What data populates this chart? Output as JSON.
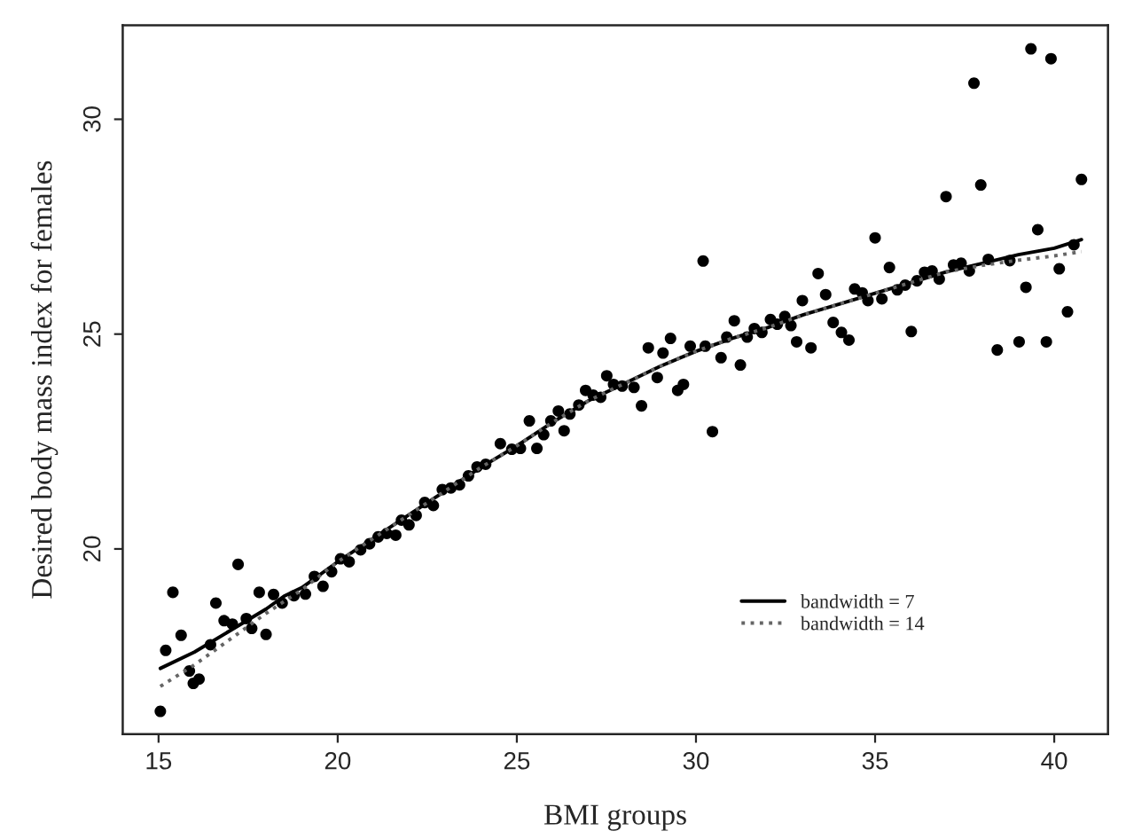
{
  "chart_data": {
    "type": "scatter",
    "xlabel": "BMI groups",
    "ylabel": "Desired body mass index for females",
    "xlim": [
      14.0,
      41.5
    ],
    "ylim": [
      15.69,
      32.19
    ],
    "xticks": [
      15,
      20,
      25,
      30,
      35,
      40
    ],
    "yticks": [
      20,
      25,
      30
    ],
    "grid": false,
    "legend": "bottom right",
    "marker": "circle",
    "series": [
      {
        "color": "#000000",
        "x": [
          15.05,
          15.2,
          15.4,
          15.63,
          15.86,
          15.97,
          16.13,
          16.45,
          16.6,
          16.83,
          17.06,
          17.22,
          17.45,
          17.6,
          17.81,
          18.0,
          18.21,
          18.45,
          18.78,
          19.1,
          19.35,
          19.59,
          19.83,
          20.08,
          20.32,
          20.64,
          20.89,
          21.13,
          21.37,
          21.62,
          21.78,
          21.99,
          22.19,
          22.43,
          22.67,
          22.92,
          23.16,
          23.4,
          23.65,
          23.89,
          24.13,
          24.54,
          24.86,
          25.1,
          25.35,
          25.56,
          25.75,
          25.95,
          26.16,
          26.32,
          26.48,
          26.73,
          26.92,
          27.13,
          27.34,
          27.51,
          27.7,
          27.94,
          28.27,
          28.48,
          28.67,
          28.92,
          29.08,
          29.29,
          29.49,
          29.65,
          29.84,
          30.2,
          30.26,
          30.46,
          30.7,
          30.86,
          31.07,
          31.24,
          31.43,
          31.63,
          31.84,
          32.08,
          32.27,
          32.48,
          32.65,
          32.81,
          32.97,
          33.21,
          33.41,
          33.62,
          33.83,
          34.06,
          34.27,
          34.43,
          34.64,
          34.8,
          35.0,
          35.19,
          35.4,
          35.62,
          35.84,
          36.01,
          36.17,
          36.38,
          36.59,
          36.79,
          36.98,
          37.19,
          37.4,
          37.63,
          37.76,
          37.95,
          38.16,
          38.41,
          38.76,
          39.02,
          39.21,
          39.35,
          39.54,
          39.78,
          39.91,
          40.14,
          40.37,
          40.55,
          40.76
        ],
        "values": [
          16.22,
          17.64,
          18.99,
          17.99,
          17.16,
          16.87,
          16.97,
          17.77,
          18.74,
          18.33,
          18.25,
          19.64,
          18.38,
          18.15,
          18.99,
          18.01,
          18.94,
          18.74,
          18.91,
          18.95,
          19.36,
          19.13,
          19.47,
          19.77,
          19.7,
          19.98,
          20.12,
          20.28,
          20.36,
          20.32,
          20.67,
          20.56,
          20.78,
          21.08,
          21.01,
          21.38,
          21.42,
          21.49,
          21.7,
          21.91,
          21.97,
          22.45,
          22.32,
          22.34,
          22.98,
          22.34,
          22.66,
          22.98,
          23.21,
          22.75,
          23.14,
          23.35,
          23.69,
          23.58,
          23.53,
          24.03,
          23.83,
          23.79,
          23.76,
          23.33,
          24.68,
          23.99,
          24.56,
          24.9,
          23.69,
          23.83,
          24.72,
          26.7,
          24.72,
          22.73,
          24.45,
          24.93,
          25.31,
          24.28,
          24.93,
          25.13,
          25.04,
          25.34,
          25.23,
          25.41,
          25.2,
          24.82,
          25.78,
          24.68,
          26.41,
          25.92,
          25.27,
          25.04,
          24.86,
          26.05,
          25.96,
          25.78,
          27.24,
          25.82,
          26.55,
          26.03,
          26.14,
          25.06,
          26.24,
          26.44,
          26.47,
          26.28,
          28.2,
          26.61,
          26.65,
          26.47,
          30.84,
          28.47,
          26.74,
          24.63,
          26.71,
          24.82,
          26.09,
          31.64,
          27.43,
          24.82,
          31.41,
          26.52,
          25.52,
          27.08,
          28.6
        ]
      },
      {
        "type": "line",
        "name": "bandwidth = 7",
        "color": "#000000",
        "line_style": "solid",
        "marker": "none",
        "x": [
          15.05,
          16,
          17,
          18,
          18.5,
          19,
          20,
          21,
          22,
          23,
          24,
          25,
          26,
          27,
          28,
          29,
          30,
          31,
          32,
          33,
          34,
          35,
          36,
          37,
          38,
          39,
          40,
          40.76
        ],
        "values": [
          17.22,
          17.6,
          18.1,
          18.6,
          18.9,
          19.1,
          19.7,
          20.25,
          20.8,
          21.35,
          21.9,
          22.4,
          22.95,
          23.45,
          23.85,
          24.25,
          24.6,
          24.9,
          25.15,
          25.45,
          25.7,
          25.95,
          26.2,
          26.45,
          26.65,
          26.85,
          27.0,
          27.2
        ]
      },
      {
        "type": "line",
        "name": "bandwidth = 14",
        "color": "#666666",
        "line_style": "dotted",
        "marker": "none",
        "x": [
          15.05,
          16,
          17,
          18,
          19,
          20,
          21,
          22,
          23,
          24,
          25,
          26,
          27,
          28,
          29,
          30,
          31,
          32,
          33,
          34,
          35,
          36,
          37,
          38,
          39,
          40,
          40.76
        ],
        "values": [
          16.8,
          17.3,
          17.9,
          18.5,
          19.05,
          19.7,
          20.25,
          20.8,
          21.35,
          21.9,
          22.4,
          22.95,
          23.45,
          23.85,
          24.25,
          24.6,
          24.9,
          25.15,
          25.45,
          25.7,
          25.95,
          26.2,
          26.45,
          26.6,
          26.72,
          26.82,
          26.92
        ]
      }
    ]
  }
}
